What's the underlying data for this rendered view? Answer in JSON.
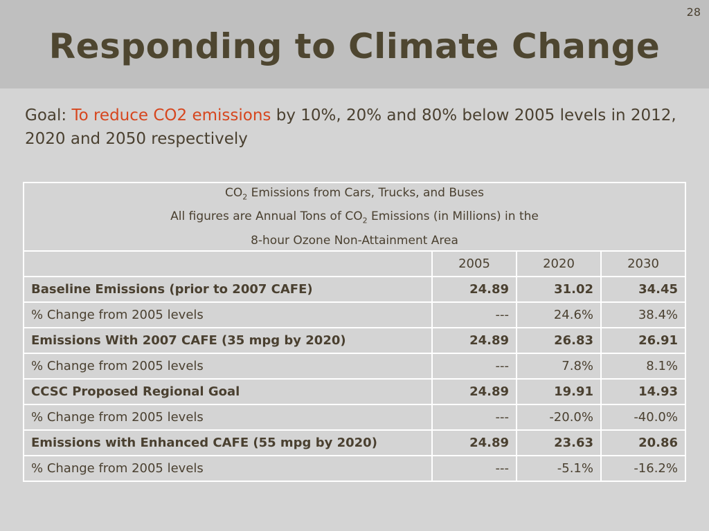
{
  "slide": {
    "number": "28",
    "title": "Responding to Climate Change"
  },
  "goal": {
    "prefix": "Goal: ",
    "highlight": "To reduce CO2 emissions",
    "rest": " by 10%, 20% and 80% below 2005 levels in 2012, 2020 and 2050 respectively"
  },
  "table": {
    "caption_line1_a": "CO",
    "caption_line1_sub": "2",
    "caption_line1_b": " Emissions from Cars, Trucks, and Buses",
    "caption_line2_a": "All figures are Annual Tons of CO",
    "caption_line2_sub": "2",
    "caption_line2_b": " Emissions (in Millions) in the",
    "caption_line3": "8-hour Ozone Non-Attainment Area",
    "years": [
      "2005",
      "2020",
      "2030"
    ],
    "rows": [
      {
        "label": "Baseline Emissions (prior to 2007 CAFE)",
        "v1": "24.89",
        "v2": "31.02",
        "v3": "34.45"
      },
      {
        "label": "% Change from 2005 levels",
        "v1": "---",
        "v2": "24.6%",
        "v3": "38.4%"
      },
      {
        "label": "Emissions With 2007 CAFE (35 mpg by 2020)",
        "v1": "24.89",
        "v2": "26.83",
        "v3": "26.91"
      },
      {
        "label": "% Change from 2005 levels",
        "v1": "---",
        "v2": "7.8%",
        "v3": "8.1%"
      },
      {
        "label": "CCSC Proposed Regional Goal",
        "v1": "24.89",
        "v2": "19.91",
        "v3": "14.93"
      },
      {
        "label": "% Change from 2005 levels",
        "v1": "---",
        "v2": "-20.0%",
        "v3": "-40.0%"
      },
      {
        "label": "Emissions with Enhanced CAFE (55 mpg by 2020)",
        "v1": "24.89",
        "v2": "23.63",
        "v3": "20.86"
      },
      {
        "label": "% Change from 2005 levels",
        "v1": "---",
        "v2": "-5.1%",
        "v3": "-16.2%"
      }
    ]
  }
}
